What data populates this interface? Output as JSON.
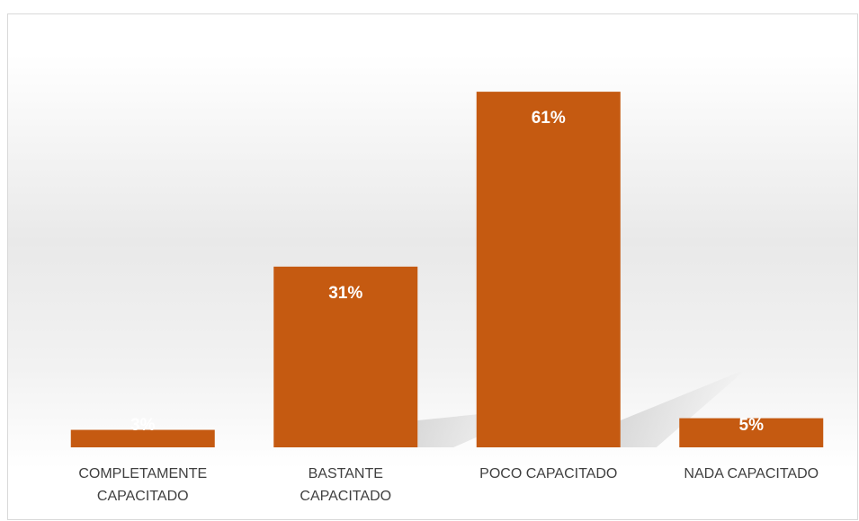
{
  "chart_data": {
    "type": "bar",
    "categories": [
      "COMPLETAMENTE CAPACITADO",
      "BASTANTE CAPACITADO",
      "POCO CAPACITADO",
      "NADA CAPACITADO"
    ],
    "values": [
      3,
      31,
      61,
      5
    ],
    "value_labels": [
      "3%",
      "31%",
      "61%",
      "5%"
    ],
    "color": "#c55a11"
  }
}
